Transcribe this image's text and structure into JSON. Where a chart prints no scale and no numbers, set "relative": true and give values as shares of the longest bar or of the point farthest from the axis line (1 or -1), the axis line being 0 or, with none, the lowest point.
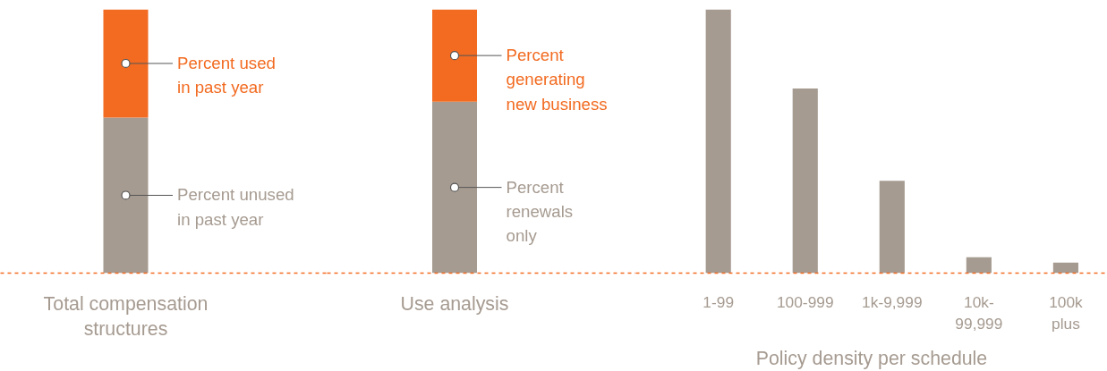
{
  "chart_data": [
    {
      "type": "bar",
      "stacked": true,
      "relative": true,
      "categories": [
        "Total compensation\nstructures"
      ],
      "series": [
        {
          "name": "Percent unused\nin past year",
          "color": "#a69b91",
          "values": [
            0.59
          ]
        },
        {
          "name": "Percent used\nin past year",
          "color": "#f26b21",
          "values": [
            0.41
          ]
        }
      ]
    },
    {
      "type": "bar",
      "stacked": true,
      "relative": true,
      "categories": [
        "Use analysis"
      ],
      "series": [
        {
          "name": "Percent\nrenewals\nonly",
          "color": "#a69b91",
          "values": [
            0.65
          ]
        },
        {
          "name": "Percent\ngenerating\nnew business",
          "color": "#f26b21",
          "values": [
            0.35
          ]
        }
      ]
    },
    {
      "type": "bar",
      "relative": true,
      "xlabel": "Policy density per schedule",
      "categories": [
        "1-99",
        "100-999",
        "1k-9,999",
        "10k-\n99,999",
        "100k\nplus"
      ],
      "series": [
        {
          "color": "#a69b91",
          "values": [
            1,
            0.7,
            0.35,
            0.06,
            0.04
          ]
        }
      ]
    }
  ]
}
